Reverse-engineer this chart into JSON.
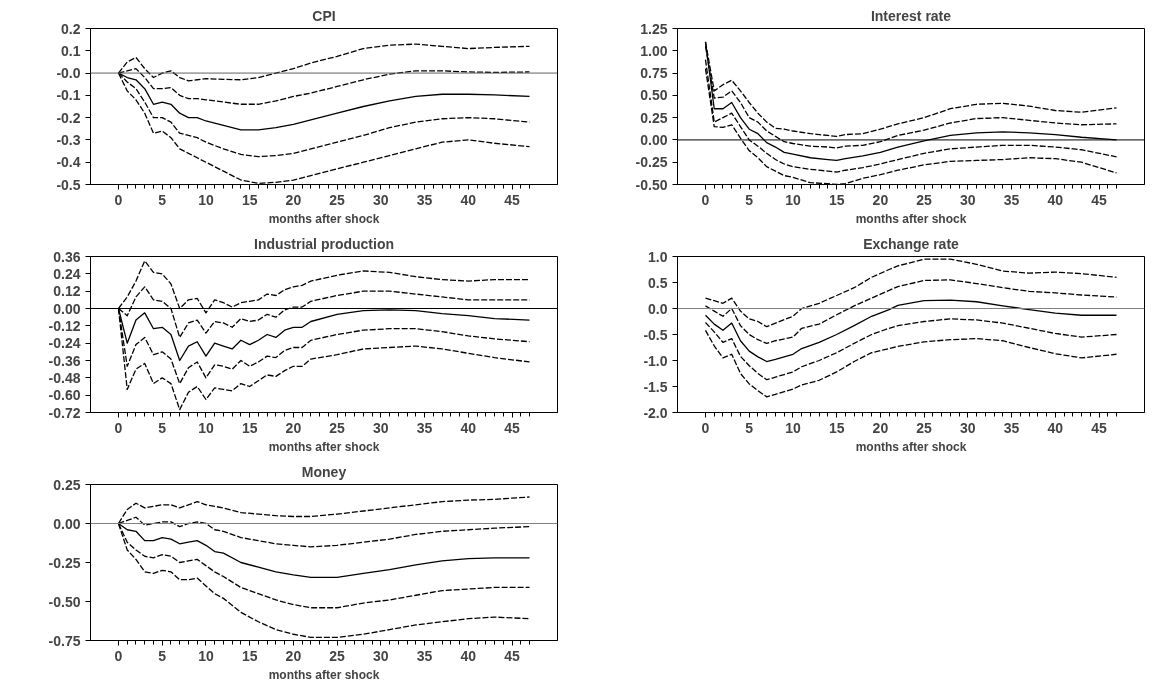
{
  "chart_data": [
    {
      "type": "line",
      "title": "CPI",
      "xlabel": "months after shock",
      "grid": false,
      "x": [
        0,
        1,
        2,
        3,
        4,
        5,
        6,
        7,
        8,
        9,
        10,
        12,
        14,
        16,
        18,
        20,
        22,
        25,
        28,
        31,
        34,
        37,
        40,
        43,
        47
      ],
      "series": [
        {
          "color": "#000000",
          "line_style": "solid",
          "values": [
            0,
            -0.02,
            -0.03,
            -0.07,
            -0.14,
            -0.13,
            -0.14,
            -0.18,
            -0.2,
            -0.2,
            -0.215,
            -0.235,
            -0.255,
            -0.255,
            -0.245,
            -0.23,
            -0.21,
            -0.18,
            -0.15,
            -0.125,
            -0.105,
            -0.095,
            -0.095,
            -0.098,
            -0.105
          ]
        },
        {
          "color": "#000000",
          "line_style": "dashed",
          "values": [
            0,
            0.01,
            0.02,
            -0.02,
            -0.07,
            -0.07,
            -0.065,
            -0.1,
            -0.115,
            -0.115,
            -0.12,
            -0.13,
            -0.14,
            -0.14,
            -0.125,
            -0.105,
            -0.09,
            -0.06,
            -0.03,
            -0.005,
            0.01,
            0.01,
            0.005,
            0.003,
            0.005
          ]
        },
        {
          "color": "#000000",
          "line_style": "dashed",
          "values": [
            0,
            0.05,
            0.07,
            0.02,
            -0.02,
            0,
            0.01,
            -0.02,
            -0.035,
            -0.03,
            -0.025,
            -0.028,
            -0.03,
            -0.02,
            0,
            0.02,
            0.045,
            0.075,
            0.11,
            0.125,
            0.13,
            0.12,
            0.11,
            0.115,
            0.12
          ]
        },
        {
          "color": "#000000",
          "line_style": "dashed",
          "values": [
            0,
            -0.04,
            -0.07,
            -0.13,
            -0.2,
            -0.2,
            -0.22,
            -0.27,
            -0.28,
            -0.29,
            -0.31,
            -0.34,
            -0.365,
            -0.375,
            -0.37,
            -0.36,
            -0.34,
            -0.31,
            -0.28,
            -0.245,
            -0.22,
            -0.205,
            -0.2,
            -0.205,
            -0.22
          ]
        },
        {
          "color": "#000000",
          "line_style": "dashed",
          "values": [
            0,
            -0.08,
            -0.12,
            -0.18,
            -0.27,
            -0.26,
            -0.29,
            -0.34,
            -0.36,
            -0.38,
            -0.4,
            -0.44,
            -0.48,
            -0.495,
            -0.49,
            -0.48,
            -0.46,
            -0.43,
            -0.4,
            -0.37,
            -0.34,
            -0.31,
            -0.3,
            -0.315,
            -0.33
          ]
        }
      ],
      "xlim": [
        -3.2,
        50.2
      ],
      "xticks": [
        0,
        {
          "value": 1,
          "label": null
        },
        {
          "value": 2,
          "label": null
        },
        {
          "value": 3,
          "label": null
        },
        {
          "value": 4,
          "label": null
        },
        5,
        {
          "value": 6,
          "label": null
        },
        {
          "value": 7,
          "label": null
        },
        {
          "value": 8,
          "label": null
        },
        {
          "value": 9,
          "label": null
        },
        10,
        {
          "value": 11,
          "label": null
        },
        {
          "value": 12,
          "label": null
        },
        {
          "value": 13,
          "label": null
        },
        {
          "value": 14,
          "label": null
        },
        15,
        {
          "value": 16,
          "label": null
        },
        {
          "value": 17,
          "label": null
        },
        {
          "value": 18,
          "label": null
        },
        {
          "value": 19,
          "label": null
        },
        20,
        {
          "value": 21,
          "label": null
        },
        {
          "value": 22,
          "label": null
        },
        {
          "value": 23,
          "label": null
        },
        {
          "value": 24,
          "label": null
        },
        25,
        {
          "value": 26,
          "label": null
        },
        {
          "value": 27,
          "label": null
        },
        {
          "value": 28,
          "label": null
        },
        {
          "value": 29,
          "label": null
        },
        30,
        {
          "value": 31,
          "label": null
        },
        {
          "value": 32,
          "label": null
        },
        {
          "value": 33,
          "label": null
        },
        {
          "value": 34,
          "label": null
        },
        35,
        {
          "value": 36,
          "label": null
        },
        {
          "value": 37,
          "label": null
        },
        {
          "value": 38,
          "label": null
        },
        {
          "value": 39,
          "label": null
        },
        40,
        {
          "value": 41,
          "label": null
        },
        {
          "value": 42,
          "label": null
        },
        {
          "value": 43,
          "label": null
        },
        {
          "value": 44,
          "label": null
        },
        45,
        {
          "value": 46,
          "label": null
        },
        {
          "value": 47,
          "label": null
        }
      ],
      "ylim": [
        -0.5,
        0.2
      ],
      "yticks": [
        -0.5,
        -0.4,
        -0.3,
        -0.2,
        -0.1,
        {
          "value": 0,
          "label": "-0.0"
        },
        0.1,
        0.2
      ],
      "ref_lines": [
        {
          "axis": "y",
          "value": 0,
          "label": null,
          "color": "#606060"
        }
      ]
    },
    {
      "type": "line",
      "title": "Interest rate",
      "xlabel": "months after shock",
      "grid": false,
      "x": [
        0,
        1,
        2,
        3,
        4,
        5,
        6,
        7,
        8,
        9,
        10,
        12,
        14,
        15,
        16,
        18,
        20,
        22,
        25,
        28,
        31,
        34,
        37,
        40,
        43,
        47
      ],
      "series": [
        {
          "color": "#000000",
          "line_style": "solid",
          "values": [
            1.1,
            0.35,
            0.35,
            0.42,
            0.25,
            0.12,
            0.07,
            -0.03,
            -0.08,
            -0.14,
            -0.16,
            -0.2,
            -0.22,
            -0.23,
            -0.21,
            -0.18,
            -0.14,
            -0.08,
            -0.01,
            0.05,
            0.08,
            0.09,
            0.08,
            0.06,
            0.03,
            0
          ]
        },
        {
          "color": "#000000",
          "line_style": "dashed",
          "values": [
            1.05,
            0.47,
            0.48,
            0.55,
            0.42,
            0.25,
            0.2,
            0.1,
            0.04,
            -0.02,
            -0.04,
            -0.07,
            -0.08,
            -0.09,
            -0.07,
            -0.06,
            -0.02,
            0.05,
            0.11,
            0.19,
            0.24,
            0.25,
            0.22,
            0.19,
            0.17,
            0.18
          ]
        },
        {
          "color": "#000000",
          "line_style": "dashed",
          "values": [
            1.1,
            0.55,
            0.62,
            0.67,
            0.55,
            0.42,
            0.3,
            0.2,
            0.13,
            0.12,
            0.1,
            0.07,
            0.05,
            0.04,
            0.06,
            0.07,
            0.12,
            0.18,
            0.25,
            0.35,
            0.4,
            0.41,
            0.38,
            0.33,
            0.31,
            0.36
          ]
        },
        {
          "color": "#000000",
          "line_style": "dashed",
          "values": [
            0.9,
            0.2,
            0.25,
            0.3,
            0.15,
            0,
            -0.07,
            -0.15,
            -0.22,
            -0.27,
            -0.3,
            -0.33,
            -0.35,
            -0.36,
            -0.34,
            -0.31,
            -0.27,
            -0.22,
            -0.15,
            -0.1,
            -0.08,
            -0.06,
            -0.06,
            -0.08,
            -0.11,
            -0.19
          ]
        },
        {
          "color": "#000000",
          "line_style": "dashed",
          "values": [
            0.8,
            0.15,
            0.14,
            0.17,
            0.02,
            -0.12,
            -0.2,
            -0.3,
            -0.35,
            -0.4,
            -0.42,
            -0.48,
            -0.49,
            -0.5,
            -0.49,
            -0.43,
            -0.39,
            -0.34,
            -0.28,
            -0.24,
            -0.23,
            -0.22,
            -0.2,
            -0.21,
            -0.25,
            -0.37
          ]
        }
      ],
      "xlim": [
        -3.2,
        50.2
      ],
      "xticks": [
        0,
        {
          "value": 1,
          "label": null
        },
        {
          "value": 2,
          "label": null
        },
        {
          "value": 3,
          "label": null
        },
        {
          "value": 4,
          "label": null
        },
        5,
        {
          "value": 6,
          "label": null
        },
        {
          "value": 7,
          "label": null
        },
        {
          "value": 8,
          "label": null
        },
        {
          "value": 9,
          "label": null
        },
        10,
        {
          "value": 11,
          "label": null
        },
        {
          "value": 12,
          "label": null
        },
        {
          "value": 13,
          "label": null
        },
        {
          "value": 14,
          "label": null
        },
        15,
        {
          "value": 16,
          "label": null
        },
        {
          "value": 17,
          "label": null
        },
        {
          "value": 18,
          "label": null
        },
        {
          "value": 19,
          "label": null
        },
        20,
        {
          "value": 21,
          "label": null
        },
        {
          "value": 22,
          "label": null
        },
        {
          "value": 23,
          "label": null
        },
        {
          "value": 24,
          "label": null
        },
        25,
        {
          "value": 26,
          "label": null
        },
        {
          "value": 27,
          "label": null
        },
        {
          "value": 28,
          "label": null
        },
        {
          "value": 29,
          "label": null
        },
        30,
        {
          "value": 31,
          "label": null
        },
        {
          "value": 32,
          "label": null
        },
        {
          "value": 33,
          "label": null
        },
        {
          "value": 34,
          "label": null
        },
        35,
        {
          "value": 36,
          "label": null
        },
        {
          "value": 37,
          "label": null
        },
        {
          "value": 38,
          "label": null
        },
        {
          "value": 39,
          "label": null
        },
        40,
        {
          "value": 41,
          "label": null
        },
        {
          "value": 42,
          "label": null
        },
        {
          "value": 43,
          "label": null
        },
        {
          "value": 44,
          "label": null
        },
        45,
        {
          "value": 46,
          "label": null
        },
        {
          "value": 47,
          "label": null
        }
      ],
      "ylim": [
        -0.5,
        1.25
      ],
      "yticks": [
        {
          "value": -0.5,
          "label": "-0.50"
        },
        -0.25,
        {
          "value": 0,
          "label": "0.00"
        },
        0.25,
        {
          "value": 0.5,
          "label": "0.50"
        },
        0.75,
        {
          "value": 1,
          "label": "1.00"
        },
        1.25
      ],
      "ref_lines": [
        {
          "axis": "y",
          "value": 0,
          "label": null,
          "color": "#000000"
        }
      ]
    },
    {
      "type": "line",
      "title": "Industrial production",
      "xlabel": "months after shock",
      "grid": false,
      "x": [
        0,
        1,
        2,
        3,
        4,
        5,
        6,
        7,
        8,
        9,
        10,
        11,
        12,
        13,
        14,
        15,
        16,
        17,
        18,
        19,
        20,
        21,
        22,
        25,
        28,
        31,
        34,
        37,
        40,
        43,
        47
      ],
      "series": [
        {
          "color": "#000000",
          "line_style": "solid",
          "values": [
            0,
            -0.24,
            -0.08,
            -0.03,
            -0.14,
            -0.13,
            -0.18,
            -0.36,
            -0.26,
            -0.23,
            -0.33,
            -0.24,
            -0.26,
            -0.28,
            -0.22,
            -0.25,
            -0.22,
            -0.18,
            -0.2,
            -0.15,
            -0.13,
            -0.13,
            -0.09,
            -0.04,
            -0.015,
            -0.01,
            -0.015,
            -0.035,
            -0.05,
            -0.07,
            -0.08
          ]
        },
        {
          "color": "#000000",
          "line_style": "dashed",
          "values": [
            0,
            -0.05,
            0.08,
            0.15,
            0.06,
            0.05,
            0,
            -0.2,
            -0.1,
            -0.08,
            -0.17,
            -0.09,
            -0.1,
            -0.13,
            -0.07,
            -0.09,
            -0.08,
            -0.04,
            -0.06,
            -0.01,
            0.01,
            0.01,
            0.05,
            0.09,
            0.12,
            0.12,
            0.1,
            0.08,
            0.06,
            0.06,
            0.06
          ]
        },
        {
          "color": "#000000",
          "line_style": "dashed",
          "values": [
            0,
            0.08,
            0.19,
            0.33,
            0.25,
            0.24,
            0.17,
            0,
            0.06,
            0.07,
            -0.03,
            0.06,
            0.04,
            0.01,
            0.04,
            0.05,
            0.06,
            0.1,
            0.09,
            0.13,
            0.15,
            0.16,
            0.19,
            0.23,
            0.26,
            0.25,
            0.22,
            0.2,
            0.19,
            0.2,
            0.2
          ]
        },
        {
          "color": "#000000",
          "line_style": "dashed",
          "values": [
            0,
            -0.4,
            -0.25,
            -0.2,
            -0.32,
            -0.3,
            -0.35,
            -0.52,
            -0.41,
            -0.37,
            -0.48,
            -0.39,
            -0.4,
            -0.42,
            -0.36,
            -0.4,
            -0.37,
            -0.33,
            -0.34,
            -0.29,
            -0.27,
            -0.27,
            -0.22,
            -0.18,
            -0.15,
            -0.14,
            -0.14,
            -0.16,
            -0.19,
            -0.21,
            -0.23
          ]
        },
        {
          "color": "#000000",
          "line_style": "dashed",
          "values": [
            0,
            -0.56,
            -0.42,
            -0.38,
            -0.52,
            -0.48,
            -0.52,
            -0.7,
            -0.58,
            -0.54,
            -0.63,
            -0.55,
            -0.56,
            -0.57,
            -0.52,
            -0.54,
            -0.5,
            -0.46,
            -0.47,
            -0.43,
            -0.4,
            -0.4,
            -0.35,
            -0.32,
            -0.28,
            -0.27,
            -0.26,
            -0.28,
            -0.31,
            -0.34,
            -0.37
          ]
        }
      ],
      "xlim": [
        -3.2,
        50.2
      ],
      "xticks": [
        0,
        {
          "value": 1,
          "label": null
        },
        {
          "value": 2,
          "label": null
        },
        {
          "value": 3,
          "label": null
        },
        {
          "value": 4,
          "label": null
        },
        5,
        {
          "value": 6,
          "label": null
        },
        {
          "value": 7,
          "label": null
        },
        {
          "value": 8,
          "label": null
        },
        {
          "value": 9,
          "label": null
        },
        10,
        {
          "value": 11,
          "label": null
        },
        {
          "value": 12,
          "label": null
        },
        {
          "value": 13,
          "label": null
        },
        {
          "value": 14,
          "label": null
        },
        15,
        {
          "value": 16,
          "label": null
        },
        {
          "value": 17,
          "label": null
        },
        {
          "value": 18,
          "label": null
        },
        {
          "value": 19,
          "label": null
        },
        20,
        {
          "value": 21,
          "label": null
        },
        {
          "value": 22,
          "label": null
        },
        {
          "value": 23,
          "label": null
        },
        {
          "value": 24,
          "label": null
        },
        25,
        {
          "value": 26,
          "label": null
        },
        {
          "value": 27,
          "label": null
        },
        {
          "value": 28,
          "label": null
        },
        {
          "value": 29,
          "label": null
        },
        30,
        {
          "value": 31,
          "label": null
        },
        {
          "value": 32,
          "label": null
        },
        {
          "value": 33,
          "label": null
        },
        {
          "value": 34,
          "label": null
        },
        35,
        {
          "value": 36,
          "label": null
        },
        {
          "value": 37,
          "label": null
        },
        {
          "value": 38,
          "label": null
        },
        {
          "value": 39,
          "label": null
        },
        40,
        {
          "value": 41,
          "label": null
        },
        {
          "value": 42,
          "label": null
        },
        {
          "value": 43,
          "label": null
        },
        {
          "value": 44,
          "label": null
        },
        45,
        {
          "value": 46,
          "label": null
        },
        {
          "value": 47,
          "label": null
        }
      ],
      "ylim": [
        -0.72,
        0.36
      ],
      "yticks": [
        {
          "value": -0.72,
          "label": "-0.72"
        },
        {
          "value": -0.6,
          "label": "-0.60"
        },
        -0.48,
        -0.36,
        -0.24,
        -0.12,
        {
          "value": 0,
          "label": "0.00"
        },
        0.12,
        0.24,
        0.36
      ],
      "ref_lines": [
        {
          "axis": "y",
          "value": 0,
          "label": null,
          "color": "#000000"
        }
      ]
    },
    {
      "type": "line",
      "title": "Exchange rate",
      "xlabel": "months after shock",
      "grid": false,
      "x": [
        0,
        1,
        2,
        3,
        4,
        5,
        6,
        7,
        8,
        10,
        11,
        13,
        15,
        17,
        19,
        21,
        22,
        25,
        28,
        31,
        34,
        37,
        40,
        43,
        47
      ],
      "series": [
        {
          "color": "#000000",
          "line_style": "solid",
          "values": [
            -0.13,
            -0.3,
            -0.42,
            -0.28,
            -0.62,
            -0.82,
            -0.93,
            -1.02,
            -0.98,
            -0.88,
            -0.77,
            -0.65,
            -0.5,
            -0.33,
            -0.15,
            -0.02,
            0.06,
            0.15,
            0.16,
            0.13,
            0.05,
            -0.02,
            -0.09,
            -0.13,
            -0.13
          ]
        },
        {
          "color": "#000000",
          "line_style": "dashed",
          "values": [
            0.05,
            -0.05,
            -0.15,
            0,
            -0.33,
            -0.5,
            -0.6,
            -0.67,
            -0.62,
            -0.55,
            -0.38,
            -0.3,
            -0.12,
            0.05,
            0.2,
            0.35,
            0.42,
            0.54,
            0.55,
            0.48,
            0.4,
            0.33,
            0.3,
            0.26,
            0.22
          ]
        },
        {
          "color": "#000000",
          "line_style": "dashed",
          "values": [
            0.2,
            0.15,
            0.1,
            0.2,
            -0.05,
            -0.2,
            -0.25,
            -0.35,
            -0.28,
            -0.15,
            0,
            0.1,
            0.25,
            0.4,
            0.6,
            0.75,
            0.82,
            0.95,
            0.95,
            0.85,
            0.72,
            0.68,
            0.7,
            0.67,
            0.6
          ]
        },
        {
          "color": "#000000",
          "line_style": "dashed",
          "values": [
            -0.27,
            -0.45,
            -0.65,
            -0.58,
            -0.92,
            -1.1,
            -1.25,
            -1.37,
            -1.32,
            -1.22,
            -1.12,
            -1,
            -0.85,
            -0.67,
            -0.5,
            -0.38,
            -0.33,
            -0.25,
            -0.2,
            -0.22,
            -0.28,
            -0.38,
            -0.48,
            -0.55,
            -0.5
          ]
        },
        {
          "color": "#000000",
          "line_style": "dashed",
          "values": [
            -0.42,
            -0.72,
            -0.95,
            -0.88,
            -1.25,
            -1.45,
            -1.58,
            -1.7,
            -1.65,
            -1.55,
            -1.47,
            -1.38,
            -1.22,
            -1.02,
            -0.85,
            -0.77,
            -0.73,
            -0.64,
            -0.6,
            -0.58,
            -0.62,
            -0.75,
            -0.87,
            -0.95,
            -0.88
          ]
        }
      ],
      "xlim": [
        -3.2,
        50.2
      ],
      "xticks": [
        0,
        {
          "value": 1,
          "label": null
        },
        {
          "value": 2,
          "label": null
        },
        {
          "value": 3,
          "label": null
        },
        {
          "value": 4,
          "label": null
        },
        5,
        {
          "value": 6,
          "label": null
        },
        {
          "value": 7,
          "label": null
        },
        {
          "value": 8,
          "label": null
        },
        {
          "value": 9,
          "label": null
        },
        10,
        {
          "value": 11,
          "label": null
        },
        {
          "value": 12,
          "label": null
        },
        {
          "value": 13,
          "label": null
        },
        {
          "value": 14,
          "label": null
        },
        15,
        {
          "value": 16,
          "label": null
        },
        {
          "value": 17,
          "label": null
        },
        {
          "value": 18,
          "label": null
        },
        {
          "value": 19,
          "label": null
        },
        20,
        {
          "value": 21,
          "label": null
        },
        {
          "value": 22,
          "label": null
        },
        {
          "value": 23,
          "label": null
        },
        {
          "value": 24,
          "label": null
        },
        25,
        {
          "value": 26,
          "label": null
        },
        {
          "value": 27,
          "label": null
        },
        {
          "value": 28,
          "label": null
        },
        {
          "value": 29,
          "label": null
        },
        30,
        {
          "value": 31,
          "label": null
        },
        {
          "value": 32,
          "label": null
        },
        {
          "value": 33,
          "label": null
        },
        {
          "value": 34,
          "label": null
        },
        35,
        {
          "value": 36,
          "label": null
        },
        {
          "value": 37,
          "label": null
        },
        {
          "value": 38,
          "label": null
        },
        {
          "value": 39,
          "label": null
        },
        40,
        {
          "value": 41,
          "label": null
        },
        {
          "value": 42,
          "label": null
        },
        {
          "value": 43,
          "label": null
        },
        {
          "value": 44,
          "label": null
        },
        45,
        {
          "value": 46,
          "label": null
        },
        {
          "value": 47,
          "label": null
        }
      ],
      "ylim": [
        -2,
        1
      ],
      "yticks": [
        {
          "value": -2,
          "label": "-2.0"
        },
        -1.5,
        {
          "value": -1,
          "label": "-1.0"
        },
        -0.5,
        {
          "value": 0,
          "label": "0.0"
        },
        0.5,
        {
          "value": 1,
          "label": "1.0"
        }
      ],
      "ref_lines": [
        {
          "axis": "y",
          "value": 0,
          "label": null,
          "color": "#808080"
        }
      ]
    },
    {
      "type": "line",
      "title": "Money",
      "xlabel": "months after shock",
      "grid": false,
      "x": [
        0,
        1,
        2,
        3,
        4,
        5,
        6,
        7,
        8,
        9,
        10,
        11,
        12,
        14,
        16,
        18,
        20,
        22,
        25,
        28,
        31,
        34,
        37,
        40,
        43,
        47
      ],
      "series": [
        {
          "color": "#000000",
          "line_style": "solid",
          "values": [
            0,
            -0.04,
            -0.05,
            -0.11,
            -0.11,
            -0.09,
            -0.1,
            -0.13,
            -0.12,
            -0.11,
            -0.14,
            -0.18,
            -0.19,
            -0.25,
            -0.28,
            -0.31,
            -0.33,
            -0.345,
            -0.345,
            -0.32,
            -0.295,
            -0.265,
            -0.24,
            -0.225,
            -0.22,
            -0.22
          ]
        },
        {
          "color": "#000000",
          "line_style": "dashed",
          "values": [
            0,
            0.02,
            0.04,
            -0.01,
            0,
            0.01,
            0.01,
            -0.02,
            0,
            0.01,
            0,
            -0.04,
            -0.05,
            -0.09,
            -0.11,
            -0.13,
            -0.14,
            -0.15,
            -0.14,
            -0.12,
            -0.1,
            -0.07,
            -0.05,
            -0.04,
            -0.03,
            -0.02
          ]
        },
        {
          "color": "#000000",
          "line_style": "dashed",
          "values": [
            0,
            0.09,
            0.13,
            0.1,
            0.11,
            0.12,
            0.12,
            0.1,
            0.12,
            0.14,
            0.12,
            0.11,
            0.1,
            0.07,
            0.06,
            0.05,
            0.045,
            0.045,
            0.06,
            0.08,
            0.1,
            0.12,
            0.14,
            0.15,
            0.155,
            0.17
          ]
        },
        {
          "color": "#000000",
          "line_style": "dashed",
          "values": [
            0,
            -0.12,
            -0.17,
            -0.21,
            -0.22,
            -0.2,
            -0.21,
            -0.25,
            -0.24,
            -0.23,
            -0.27,
            -0.31,
            -0.34,
            -0.41,
            -0.45,
            -0.49,
            -0.52,
            -0.54,
            -0.54,
            -0.51,
            -0.49,
            -0.46,
            -0.43,
            -0.42,
            -0.41,
            -0.41
          ]
        },
        {
          "color": "#000000",
          "line_style": "dashed",
          "values": [
            0,
            -0.17,
            -0.23,
            -0.31,
            -0.32,
            -0.3,
            -0.31,
            -0.36,
            -0.36,
            -0.35,
            -0.4,
            -0.45,
            -0.48,
            -0.57,
            -0.63,
            -0.68,
            -0.71,
            -0.73,
            -0.73,
            -0.71,
            -0.68,
            -0.65,
            -0.63,
            -0.61,
            -0.6,
            -0.61
          ]
        }
      ],
      "xlim": [
        -3.2,
        50.2
      ],
      "xticks": [
        0,
        {
          "value": 1,
          "label": null
        },
        {
          "value": 2,
          "label": null
        },
        {
          "value": 3,
          "label": null
        },
        {
          "value": 4,
          "label": null
        },
        5,
        {
          "value": 6,
          "label": null
        },
        {
          "value": 7,
          "label": null
        },
        {
          "value": 8,
          "label": null
        },
        {
          "value": 9,
          "label": null
        },
        10,
        {
          "value": 11,
          "label": null
        },
        {
          "value": 12,
          "label": null
        },
        {
          "value": 13,
          "label": null
        },
        {
          "value": 14,
          "label": null
        },
        15,
        {
          "value": 16,
          "label": null
        },
        {
          "value": 17,
          "label": null
        },
        {
          "value": 18,
          "label": null
        },
        {
          "value": 19,
          "label": null
        },
        20,
        {
          "value": 21,
          "label": null
        },
        {
          "value": 22,
          "label": null
        },
        {
          "value": 23,
          "label": null
        },
        {
          "value": 24,
          "label": null
        },
        25,
        {
          "value": 26,
          "label": null
        },
        {
          "value": 27,
          "label": null
        },
        {
          "value": 28,
          "label": null
        },
        {
          "value": 29,
          "label": null
        },
        30,
        {
          "value": 31,
          "label": null
        },
        {
          "value": 32,
          "label": null
        },
        {
          "value": 33,
          "label": null
        },
        {
          "value": 34,
          "label": null
        },
        35,
        {
          "value": 36,
          "label": null
        },
        {
          "value": 37,
          "label": null
        },
        {
          "value": 38,
          "label": null
        },
        {
          "value": 39,
          "label": null
        },
        40,
        {
          "value": 41,
          "label": null
        },
        {
          "value": 42,
          "label": null
        },
        {
          "value": 43,
          "label": null
        },
        {
          "value": 44,
          "label": null
        },
        45,
        {
          "value": 46,
          "label": null
        },
        {
          "value": 47,
          "label": null
        }
      ],
      "ylim": [
        -0.75,
        0.25
      ],
      "yticks": [
        -0.75,
        {
          "value": -0.5,
          "label": "-0.50"
        },
        -0.25,
        {
          "value": 0,
          "label": "0.00"
        },
        0.25
      ],
      "ref_lines": [
        {
          "axis": "y",
          "value": 0,
          "label": null,
          "color": "#808080"
        }
      ]
    }
  ]
}
